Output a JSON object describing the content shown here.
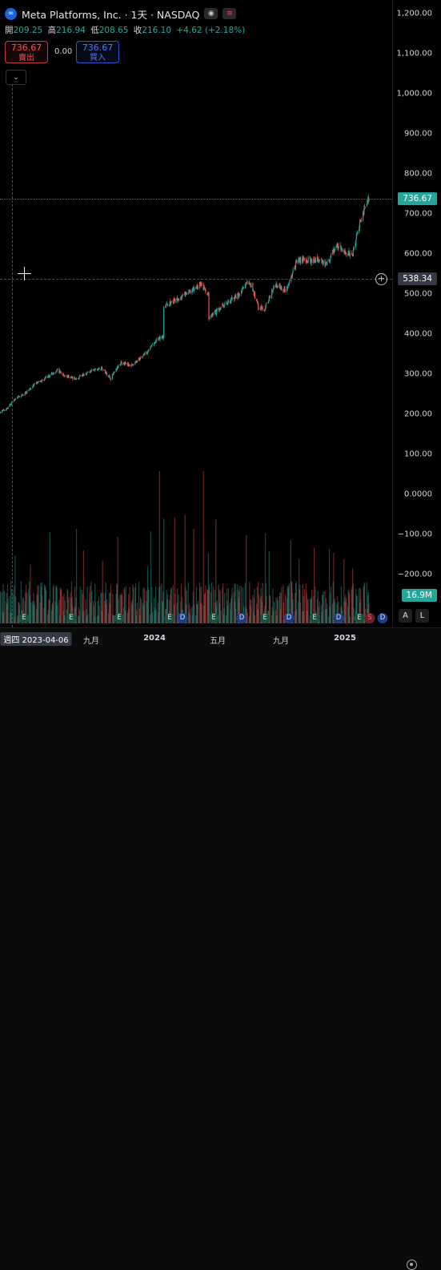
{
  "header": {
    "logo_glyph": "∞",
    "title": "Meta Platforms, Inc. · 1天 · NASDAQ",
    "eye_glyph": "◉",
    "flag_glyph": "≡",
    "ohlc": [
      {
        "label": "開",
        "value": "209.25"
      },
      {
        "label": "高",
        "value": "216.94"
      },
      {
        "label": "低",
        "value": "208.65"
      },
      {
        "label": "收",
        "value": "216.10"
      },
      {
        "label": "",
        "value": "+4.62 (+2.18%)"
      }
    ]
  },
  "trade": {
    "sell_price": "736.67",
    "sell_label": "賣出",
    "spread": "0.00",
    "buy_price": "736.67",
    "buy_label": "買入",
    "collapse_glyph": "⌄"
  },
  "price_axis": {
    "ticks": [
      "1,200.00",
      "1,100.00",
      "1,000.00",
      "900.00",
      "800.00",
      "700.00",
      "600.00",
      "500.00",
      "400.00",
      "300.00",
      "200.00",
      "100.00",
      "0.0000",
      "−100.00",
      "−200.00"
    ],
    "last_price": "736.67",
    "crosshair_price": "538.34",
    "volume_tag": "16.9M",
    "plus_glyph": "+"
  },
  "time_axis": {
    "crosshair_date": "週四 2023-04-06",
    "labels": [
      "九月",
      "2024",
      "五月",
      "九月",
      "2025"
    ]
  },
  "events": [
    "E",
    "E",
    "E",
    "E",
    "D",
    "E",
    "D",
    "E",
    "D",
    "E",
    "D",
    "E",
    "S",
    "D"
  ],
  "corner_buttons": {
    "auto": "A",
    "log": "L"
  },
  "colors": {
    "up": "#26a69a",
    "down": "#ef5350",
    "last_price_tag": "#26a69a",
    "crosshair_tag": "#363a45"
  },
  "chart_data": {
    "type": "candlestick",
    "ylim": [
      -250,
      1240
    ],
    "price_path": [
      {
        "x": "2023-04-06",
        "y": 205
      },
      {
        "x": "2023-04-20",
        "y": 215
      },
      {
        "x": "2023-05-01",
        "y": 235
      },
      {
        "x": "2023-05-20",
        "y": 250
      },
      {
        "x": "2023-06-10",
        "y": 275
      },
      {
        "x": "2023-06-30",
        "y": 290
      },
      {
        "x": "2023-07-20",
        "y": 310
      },
      {
        "x": "2023-08-05",
        "y": 295
      },
      {
        "x": "2023-08-25",
        "y": 288
      },
      {
        "x": "2023-09-15",
        "y": 305
      },
      {
        "x": "2023-10-10",
        "y": 315
      },
      {
        "x": "2023-10-27",
        "y": 290
      },
      {
        "x": "2023-11-15",
        "y": 330
      },
      {
        "x": "2023-12-05",
        "y": 320
      },
      {
        "x": "2023-12-28",
        "y": 350
      },
      {
        "x": "2024-01-20",
        "y": 385
      },
      {
        "x": "2024-02-01",
        "y": 395
      },
      {
        "x": "2024-02-02",
        "y": 470
      },
      {
        "x": "2024-02-25",
        "y": 485
      },
      {
        "x": "2024-03-20",
        "y": 505
      },
      {
        "x": "2024-04-10",
        "y": 525
      },
      {
        "x": "2024-04-24",
        "y": 495
      },
      {
        "x": "2024-04-25",
        "y": 440
      },
      {
        "x": "2024-05-20",
        "y": 470
      },
      {
        "x": "2024-06-20",
        "y": 500
      },
      {
        "x": "2024-07-08",
        "y": 535
      },
      {
        "x": "2024-07-25",
        "y": 470
      },
      {
        "x": "2024-08-05",
        "y": 460
      },
      {
        "x": "2024-08-25",
        "y": 525
      },
      {
        "x": "2024-09-15",
        "y": 510
      },
      {
        "x": "2024-10-05",
        "y": 585
      },
      {
        "x": "2024-10-25",
        "y": 585
      },
      {
        "x": "2024-11-10",
        "y": 585
      },
      {
        "x": "2024-12-01",
        "y": 575
      },
      {
        "x": "2024-12-15",
        "y": 625
      },
      {
        "x": "2025-01-05",
        "y": 600
      },
      {
        "x": "2025-01-15",
        "y": 600
      },
      {
        "x": "2025-01-30",
        "y": 690
      },
      {
        "x": "2025-02-14",
        "y": 736.67
      }
    ]
  }
}
